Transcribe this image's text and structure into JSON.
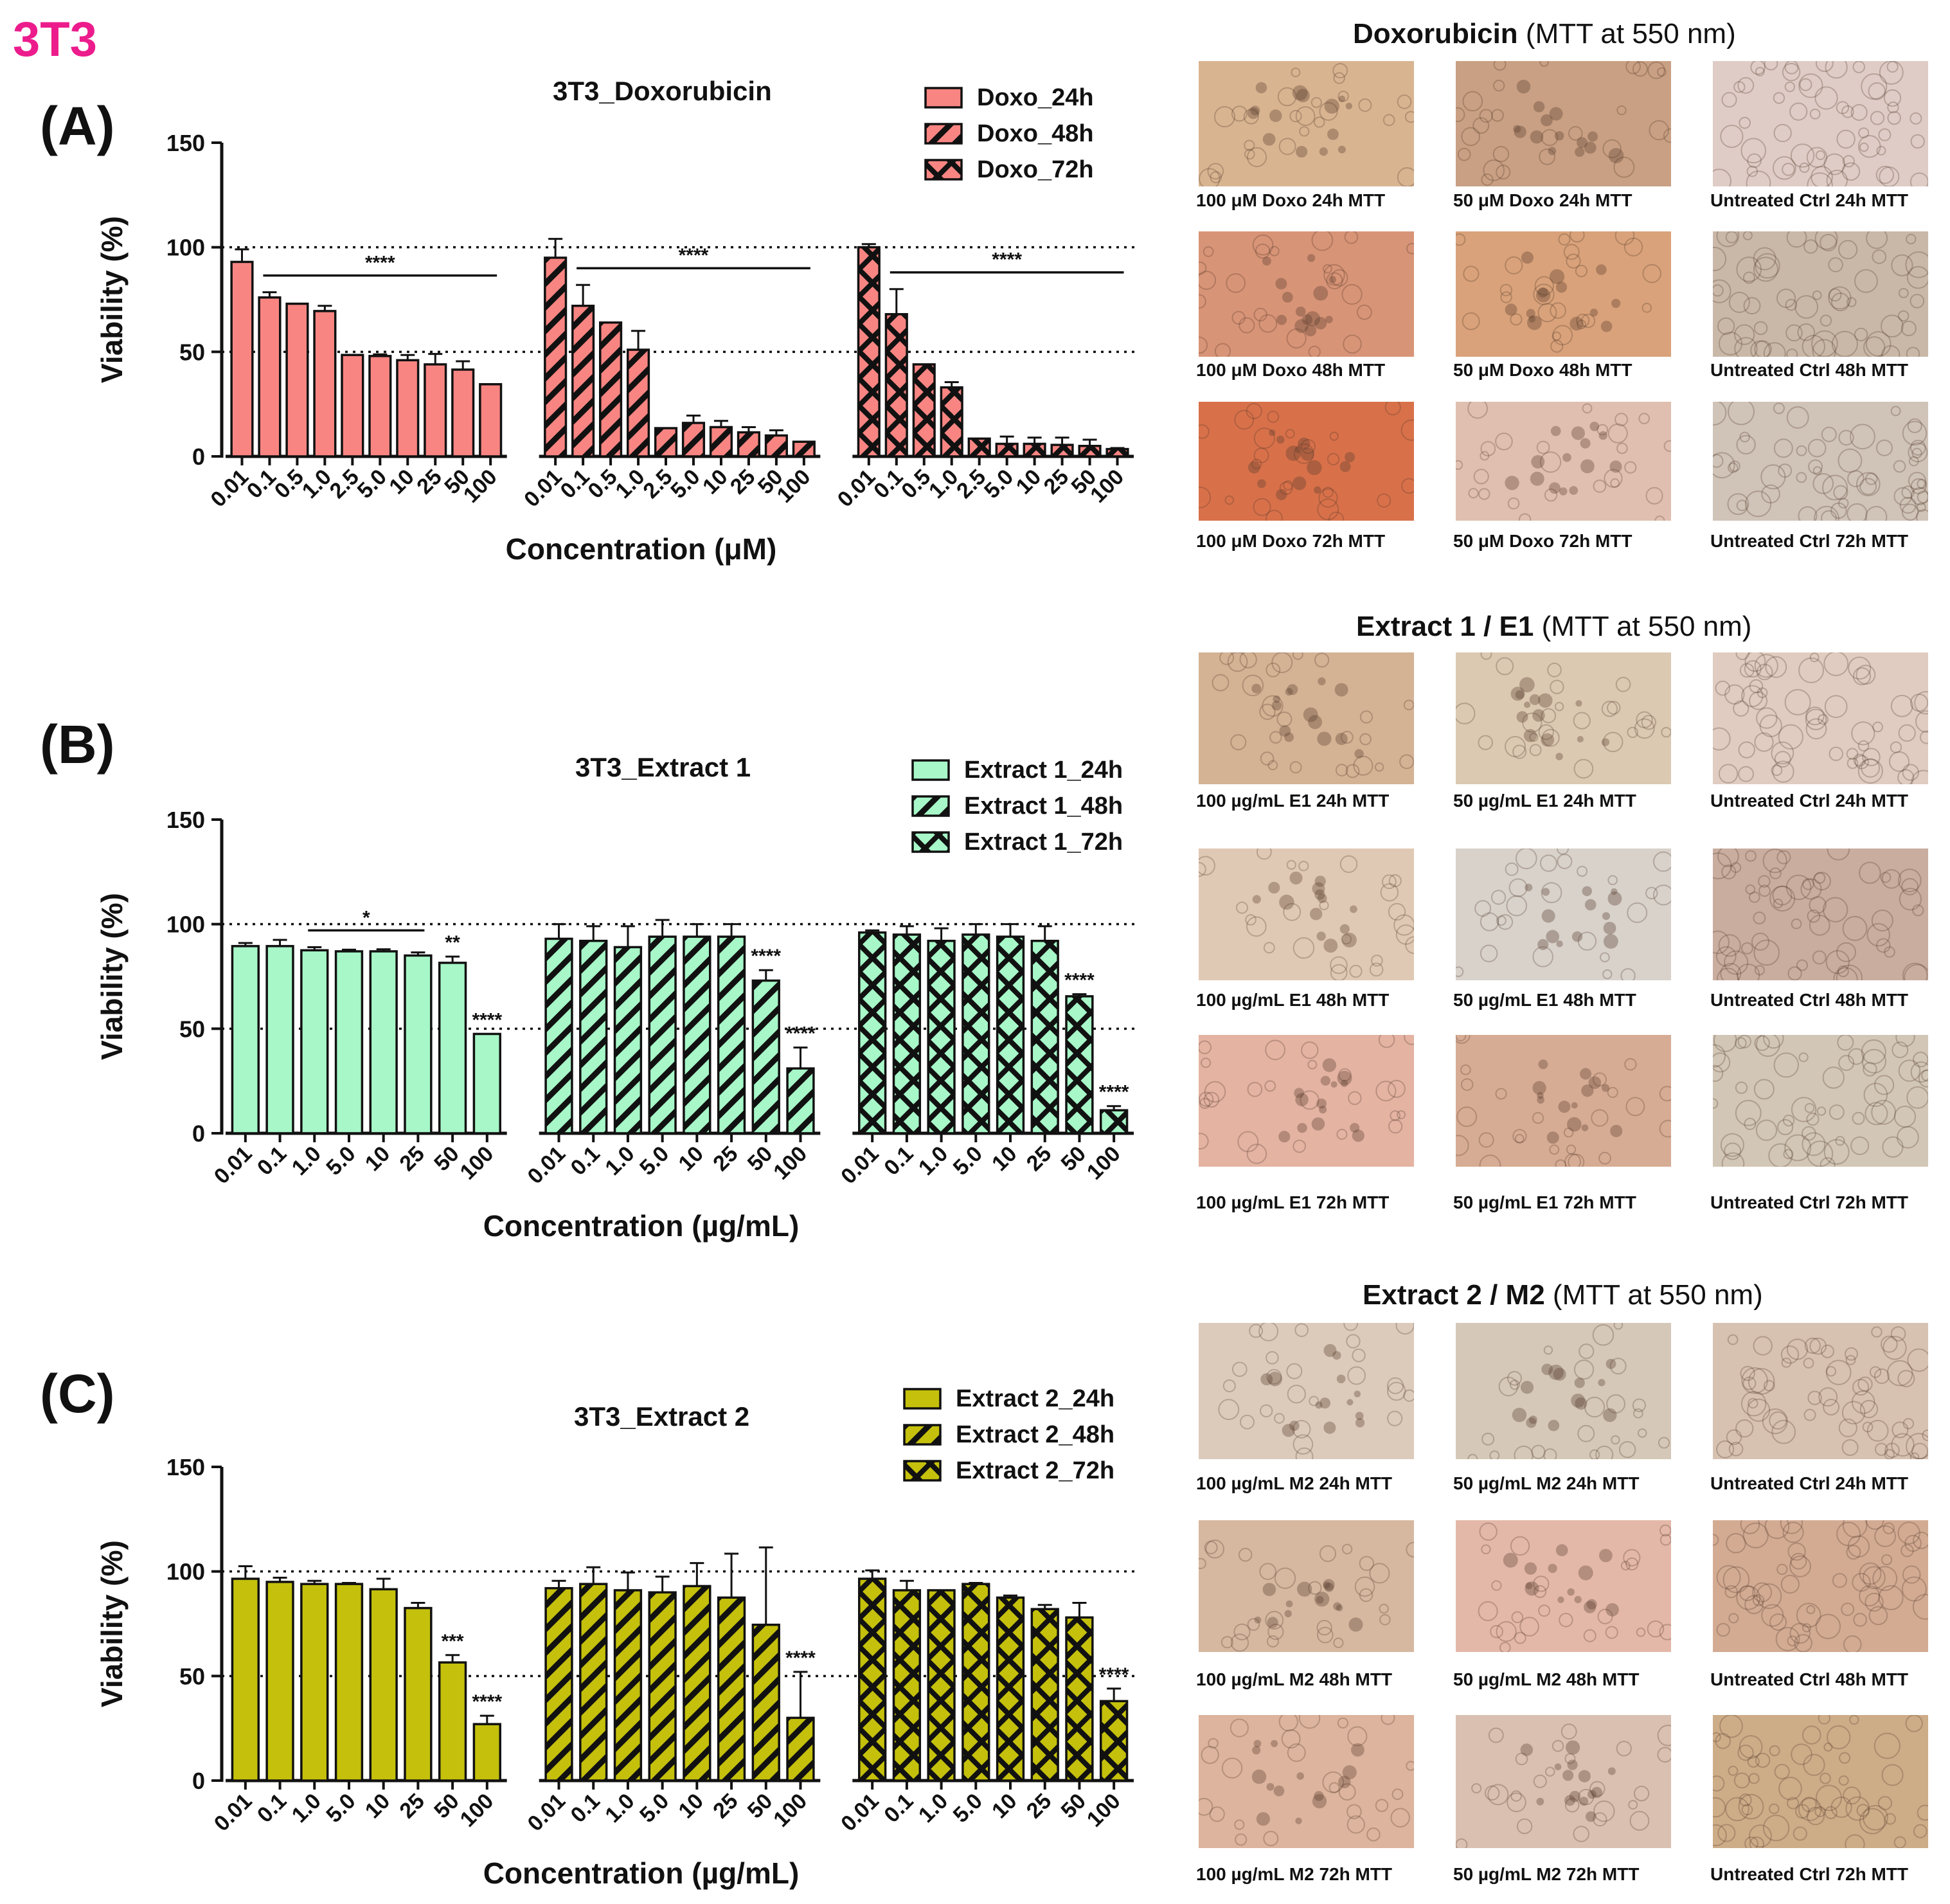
{
  "figure_title": "3T3",
  "colors": {
    "doxo": "#f88582",
    "extract1": "#a7f7c8",
    "extract2": "#c4c00c",
    "edge": "#111111"
  },
  "chart_data": [
    {
      "type": "bar",
      "panel_label": "(A)",
      "title": "3T3_Doxorubicin",
      "xlabel": "Concentration (μM)",
      "ylabel": "Viability (%)",
      "ylim": [
        0,
        150
      ],
      "yticks": [
        0,
        50,
        100,
        150
      ],
      "reference_lines": [
        50,
        100
      ],
      "fill": "#f88582",
      "categories": [
        "0.01",
        "0.1",
        "0.5",
        "1.0",
        "2.5",
        "5.0",
        "10",
        "25",
        "50",
        "100"
      ],
      "series": [
        {
          "name": "Doxo_24h",
          "pattern": "solid",
          "values": [
            93,
            76,
            73,
            69.5,
            48.5,
            48,
            46,
            44,
            41.5,
            34.5
          ],
          "errors": [
            6,
            2.5,
            0,
            2.5,
            0,
            0.8,
            2.5,
            5,
            4,
            0
          ],
          "significance": [
            {
              "label": "****",
              "type": "bracket",
              "from": 1,
              "to": 9
            }
          ]
        },
        {
          "name": "Doxo_48h",
          "pattern": "stripe",
          "values": [
            95,
            72,
            64,
            51,
            13.5,
            16,
            14,
            11.5,
            10,
            7
          ],
          "errors": [
            9,
            10,
            0,
            9,
            0,
            3.5,
            3,
            2.5,
            2.5,
            0
          ],
          "significance": [
            {
              "label": "****",
              "type": "bracket",
              "from": 1,
              "to": 9
            }
          ]
        },
        {
          "name": "Doxo_72h",
          "pattern": "cross",
          "values": [
            100,
            68,
            44,
            33,
            8.5,
            6,
            6,
            5.5,
            5,
            3.5
          ],
          "errors": [
            1.5,
            12,
            0,
            2.5,
            0,
            3.5,
            3,
            3.5,
            3,
            0.5
          ],
          "significance": [
            {
              "label": "****",
              "type": "bracket",
              "from": 1,
              "to": 9
            }
          ]
        }
      ]
    },
    {
      "type": "bar",
      "panel_label": "(B)",
      "title": "3T3_Extract 1",
      "xlabel": "Concentration (µg/mL)",
      "ylabel": "Viability (%)",
      "ylim": [
        0,
        150
      ],
      "yticks": [
        0,
        50,
        100,
        150
      ],
      "reference_lines": [
        50,
        100
      ],
      "fill": "#a7f7c8",
      "categories": [
        "0.01",
        "0.1",
        "1.0",
        "5.0",
        "10",
        "25",
        "50",
        "100"
      ],
      "series": [
        {
          "name": "Extract 1_24h",
          "pattern": "solid",
          "values": [
            89.5,
            89.5,
            87.5,
            87,
            87,
            85,
            81.5,
            47.5
          ],
          "errors": [
            1.5,
            3,
            1.5,
            0.8,
            1,
            1.5,
            3,
            0
          ],
          "significance": [
            {
              "label": "*",
              "type": "bracket",
              "from": 2,
              "to": 5
            },
            {
              "label": "**",
              "type": "bar",
              "index": 6
            },
            {
              "label": "****",
              "type": "bar",
              "index": 7
            }
          ]
        },
        {
          "name": "Extract 1_48h",
          "pattern": "stripe",
          "values": [
            93,
            92,
            89,
            94,
            94,
            94,
            73,
            31
          ],
          "errors": [
            7,
            7,
            10,
            8,
            6,
            6,
            5,
            10
          ],
          "significance": [
            {
              "label": "****",
              "type": "bar",
              "index": 6
            },
            {
              "label": "****",
              "type": "bar",
              "index": 7
            }
          ]
        },
        {
          "name": "Extract 1_72h",
          "pattern": "cross",
          "values": [
            96,
            95,
            92,
            95,
            94,
            92,
            65.5,
            11
          ],
          "errors": [
            1,
            4,
            6,
            5,
            6,
            7,
            1,
            2
          ],
          "significance": [
            {
              "label": "****",
              "type": "bar",
              "index": 6
            },
            {
              "label": "****",
              "type": "bar",
              "index": 7
            }
          ]
        }
      ]
    },
    {
      "type": "bar",
      "panel_label": "(C)",
      "title": "3T3_Extract 2",
      "xlabel": "Concentration (µg/mL)",
      "ylabel": "Viability (%)",
      "ylim": [
        0,
        150
      ],
      "yticks": [
        0,
        50,
        100,
        150
      ],
      "reference_lines": [
        50,
        100
      ],
      "fill": "#c4c00c",
      "categories": [
        "0.01",
        "0.1",
        "1.0",
        "5.0",
        "10",
        "25",
        "50",
        "100"
      ],
      "series": [
        {
          "name": "Extract 2_24h",
          "pattern": "solid",
          "values": [
            96.5,
            95,
            94,
            94,
            91.5,
            82.5,
            56.5,
            27
          ],
          "errors": [
            6,
            2,
            1.5,
            0.5,
            5,
            2.5,
            3.5,
            4
          ],
          "significance": [
            {
              "label": "***",
              "type": "bar",
              "index": 6
            },
            {
              "label": "****",
              "type": "bar",
              "index": 7
            }
          ]
        },
        {
          "name": "Extract 2_48h",
          "pattern": "stripe",
          "values": [
            92,
            94,
            91,
            90,
            93,
            87.5,
            74.5,
            30
          ],
          "errors": [
            3.5,
            8,
            8.5,
            7.5,
            11,
            21,
            37,
            22
          ],
          "significance": [
            {
              "label": "****",
              "type": "bar",
              "index": 7
            }
          ]
        },
        {
          "name": "Extract 2_72h",
          "pattern": "cross",
          "values": [
            96.5,
            91,
            91,
            94,
            87.5,
            82,
            78,
            38
          ],
          "errors": [
            4,
            4.5,
            0,
            0.5,
            1,
            2,
            7,
            6
          ],
          "significance": [
            {
              "label": "****",
              "type": "bar",
              "index": 7
            }
          ]
        }
      ]
    }
  ],
  "micrographs": [
    {
      "title_bold": "Doxorubicin",
      "title_rest": " (MTT at 550 nm)",
      "captions": [
        "100 μM Doxo 24h MTT",
        "50 μM Doxo 24h MTT",
        "Untreated Ctrl 24h MTT",
        "100 μM Doxo 48h MTT",
        "50 μM Doxo 48h MTT",
        "Untreated Ctrl 48h MTT",
        "100 μM Doxo 72h MTT",
        "50 μM Doxo 72h MTT",
        "Untreated Ctrl 72h MTT"
      ],
      "tints": [
        "#d9b491",
        "#c9a083",
        "#e0ccc6",
        "#d89477",
        "#d9a27a",
        "#c9b8a8",
        "#d8714a",
        "#e0bfb0",
        "#d0c3b8"
      ]
    },
    {
      "title_bold": "Extract 1 / E1",
      "title_rest": " (MTT at 550 nm)",
      "captions": [
        "100 µg/mL E1 24h MTT",
        "50 µg/mL E1 24h MTT",
        "Untreated Ctrl 24h MTT",
        "100 µg/mL E1 48h MTT",
        "50 µg/mL E1 48h MTT",
        "Untreated Ctrl 48h MTT",
        "100 µg/mL E1 72h MTT",
        "50 µg/mL E1 72h MTT",
        "Untreated Ctrl 72h MTT"
      ],
      "tints": [
        "#d4b294",
        "#dcc9b2",
        "#e0ccc1",
        "#e0c9b4",
        "#d8d2cb",
        "#c9ad9f",
        "#e4b3a2",
        "#d7ac94",
        "#d2c6b6"
      ]
    },
    {
      "title_bold": "Extract 2 / M2",
      "title_rest": " (MTT at 550 nm)",
      "captions": [
        "100 µg/mL M2 24h MTT",
        "50 µg/mL M2 24h MTT",
        "Untreated Ctrl 24h MTT",
        "100 µg/mL M2 48h MTT",
        "50 µg/mL M2 48h MTT",
        "Untreated Ctrl 48h MTT",
        "100 µg/mL M2 72h MTT",
        "50 µg/mL M2 72h MTT",
        "Untreated Ctrl 72h MTT"
      ],
      "tints": [
        "#dccbbb",
        "#d5c8b8",
        "#d7c1b1",
        "#d6b8a0",
        "#e4b8a8",
        "#d3ab93",
        "#ddb49d",
        "#d9c0b0",
        "#cdac88"
      ]
    }
  ]
}
